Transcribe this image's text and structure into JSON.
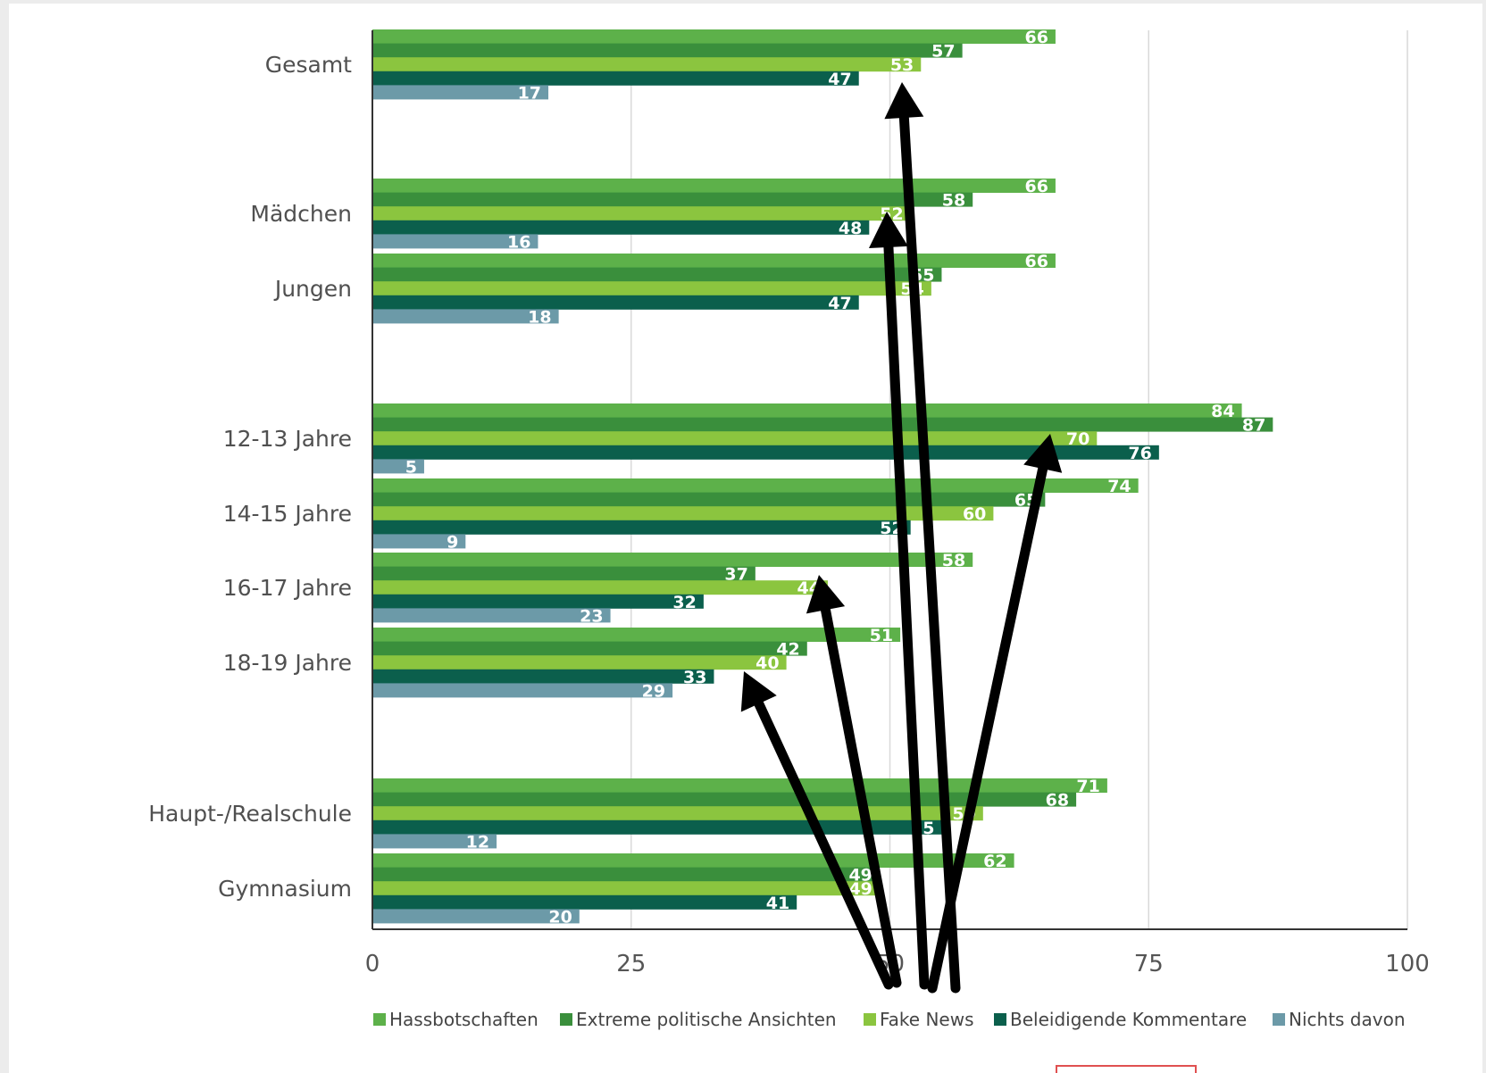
{
  "chart_data": {
    "type": "bar",
    "orientation": "horizontal",
    "categories": [
      "Gesamt",
      "Mädchen",
      "Jungen",
      "12-13 Jahre",
      "14-15 Jahre",
      "16-17 Jahre",
      "18-19 Jahre",
      "Haupt-/Realschule",
      "Gymnasium"
    ],
    "series": [
      {
        "name": "Hassbotschaften",
        "color": "#5db14a",
        "values": [
          66,
          66,
          66,
          84,
          74,
          58,
          51,
          71,
          62
        ]
      },
      {
        "name": "Extreme politische  Ansichten",
        "color": "#3a8f3c",
        "values": [
          57,
          58,
          55,
          87,
          65,
          37,
          42,
          68,
          49
        ]
      },
      {
        "name": "Fake News",
        "color": "#8bc53f",
        "values": [
          53,
          52,
          54,
          70,
          60,
          44,
          40,
          59,
          49
        ]
      },
      {
        "name": "Beleidigende  Kommentare",
        "color": "#0b5f4c",
        "values": [
          47,
          48,
          47,
          76,
          52,
          32,
          33,
          55,
          41
        ]
      },
      {
        "name": "Nichts  davon",
        "color": "#6c9aa8",
        "values": [
          17,
          16,
          18,
          5,
          9,
          23,
          29,
          12,
          20
        ]
      }
    ],
    "xlim": [
      0,
      100
    ],
    "xticks": [
      "0",
      "25",
      "50",
      "75",
      "100"
    ],
    "grid": true,
    "legend": "bottom"
  },
  "annotations": {
    "arrows": [
      {
        "from_bar": "Gesamt|Fake News",
        "origin": "below-plot"
      },
      {
        "from_bar": "Mädchen|Fake News",
        "origin": "below-plot"
      },
      {
        "from_bar": "12-13 Jahre|Fake News",
        "origin": "below-plot"
      },
      {
        "from_bar": "16-17 Jahre|Fake News",
        "origin": "below-plot"
      },
      {
        "from_bar": "18-19 Jahre|Fake News",
        "origin": "below-plot"
      }
    ],
    "arrow_color": "#000000"
  }
}
